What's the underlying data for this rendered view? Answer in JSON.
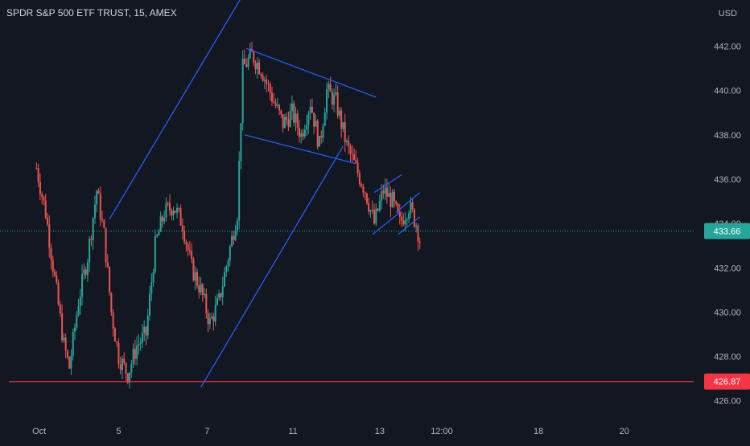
{
  "header": {
    "symbol_title": "SPDR S&P 500 ETF TRUST, 15, AMEX",
    "currency": "USD"
  },
  "colors": {
    "background": "#131722",
    "up": "#26a69a",
    "down": "#ef5350",
    "trendline": "#2962ff",
    "support": "#f23645",
    "current_price_line": "#26a69a",
    "axis_text": "#b2b5be"
  },
  "chart_data": {
    "type": "candlestick",
    "title": "SPDR S&P 500 ETF TRUST, 15, AMEX",
    "ylim": [
      425.3,
      443.0
    ],
    "y_ticks": [
      "442.00",
      "440.00",
      "438.00",
      "436.00",
      "434.00",
      "432.00",
      "430.00",
      "428.00",
      "426.00"
    ],
    "y_tick_values": [
      442,
      440,
      438,
      436,
      434,
      432,
      430,
      428,
      426
    ],
    "x_tick_labels": [
      "Oct",
      "5",
      "7",
      "11",
      "13",
      "12:00",
      "18",
      "20"
    ],
    "x_tick_positions": [
      0.145,
      4.5,
      9.35,
      14.05,
      18.8,
      22.2,
      27.5,
      32.2
    ],
    "x_range": [
      -2.0,
      36.0
    ],
    "current_price": 433.66,
    "current_price_label": "433.66",
    "support_price": 426.87,
    "support_label": "426.87",
    "price_path": [
      [
        0.0,
        436.5
      ],
      [
        0.5,
        434.5
      ],
      [
        1.0,
        431.5
      ],
      [
        1.5,
        428.5
      ],
      [
        1.8,
        427.5
      ],
      [
        2.3,
        430.5
      ],
      [
        2.8,
        432.5
      ],
      [
        3.3,
        435.5
      ],
      [
        3.7,
        433.5
      ],
      [
        4.1,
        430.0
      ],
      [
        4.5,
        428.0
      ],
      [
        5.0,
        427.2
      ],
      [
        5.5,
        428.5
      ],
      [
        6.0,
        429.0
      ],
      [
        6.5,
        433.0
      ],
      [
        7.0,
        434.5
      ],
      [
        7.5,
        434.8
      ],
      [
        8.0,
        434.0
      ],
      [
        8.5,
        432.0
      ],
      [
        9.0,
        431.0
      ],
      [
        9.5,
        429.5
      ],
      [
        10.0,
        430.5
      ],
      [
        10.5,
        432.5
      ],
      [
        11.0,
        434.5
      ],
      [
        11.3,
        441.0
      ],
      [
        11.8,
        441.6
      ],
      [
        12.3,
        441.0
      ],
      [
        13.0,
        439.5
      ],
      [
        13.5,
        438.5
      ],
      [
        14.0,
        439.0
      ],
      [
        14.5,
        438.0
      ],
      [
        15.0,
        439.5
      ],
      [
        15.5,
        437.5
      ],
      [
        15.9,
        440.0
      ],
      [
        16.4,
        439.5
      ],
      [
        17.0,
        437.5
      ],
      [
        17.5,
        436.5
      ],
      [
        18.0,
        435.5
      ],
      [
        18.5,
        434.0
      ],
      [
        19.0,
        435.5
      ],
      [
        19.5,
        435.0
      ],
      [
        19.9,
        434.0
      ],
      [
        20.4,
        434.8
      ],
      [
        20.8,
        434.0
      ],
      [
        21.1,
        432.9
      ]
    ],
    "trendlines": [
      {
        "name": "upper-channel-left",
        "from": [
          4.0,
          434.2
        ],
        "to": [
          11.8,
          445.0
        ]
      },
      {
        "name": "lower-channel-right",
        "from": [
          9.0,
          426.6
        ],
        "to": [
          16.8,
          437.5
        ]
      },
      {
        "name": "flag-top",
        "from": [
          11.5,
          441.9
        ],
        "to": [
          18.6,
          439.7
        ]
      },
      {
        "name": "flag-bottom",
        "from": [
          11.4,
          438.0
        ],
        "to": [
          17.5,
          436.7
        ]
      },
      {
        "name": "small-flag-1-top",
        "from": [
          18.5,
          435.4
        ],
        "to": [
          20.0,
          436.2
        ]
      },
      {
        "name": "small-flag-1-bottom",
        "from": [
          18.4,
          433.5
        ],
        "to": [
          19.9,
          434.5
        ]
      },
      {
        "name": "small-flag-2-top",
        "from": [
          19.7,
          434.5
        ],
        "to": [
          21.0,
          435.4
        ]
      },
      {
        "name": "small-flag-2-bottom",
        "from": [
          19.8,
          433.5
        ],
        "to": [
          21.0,
          434.3
        ]
      }
    ]
  }
}
